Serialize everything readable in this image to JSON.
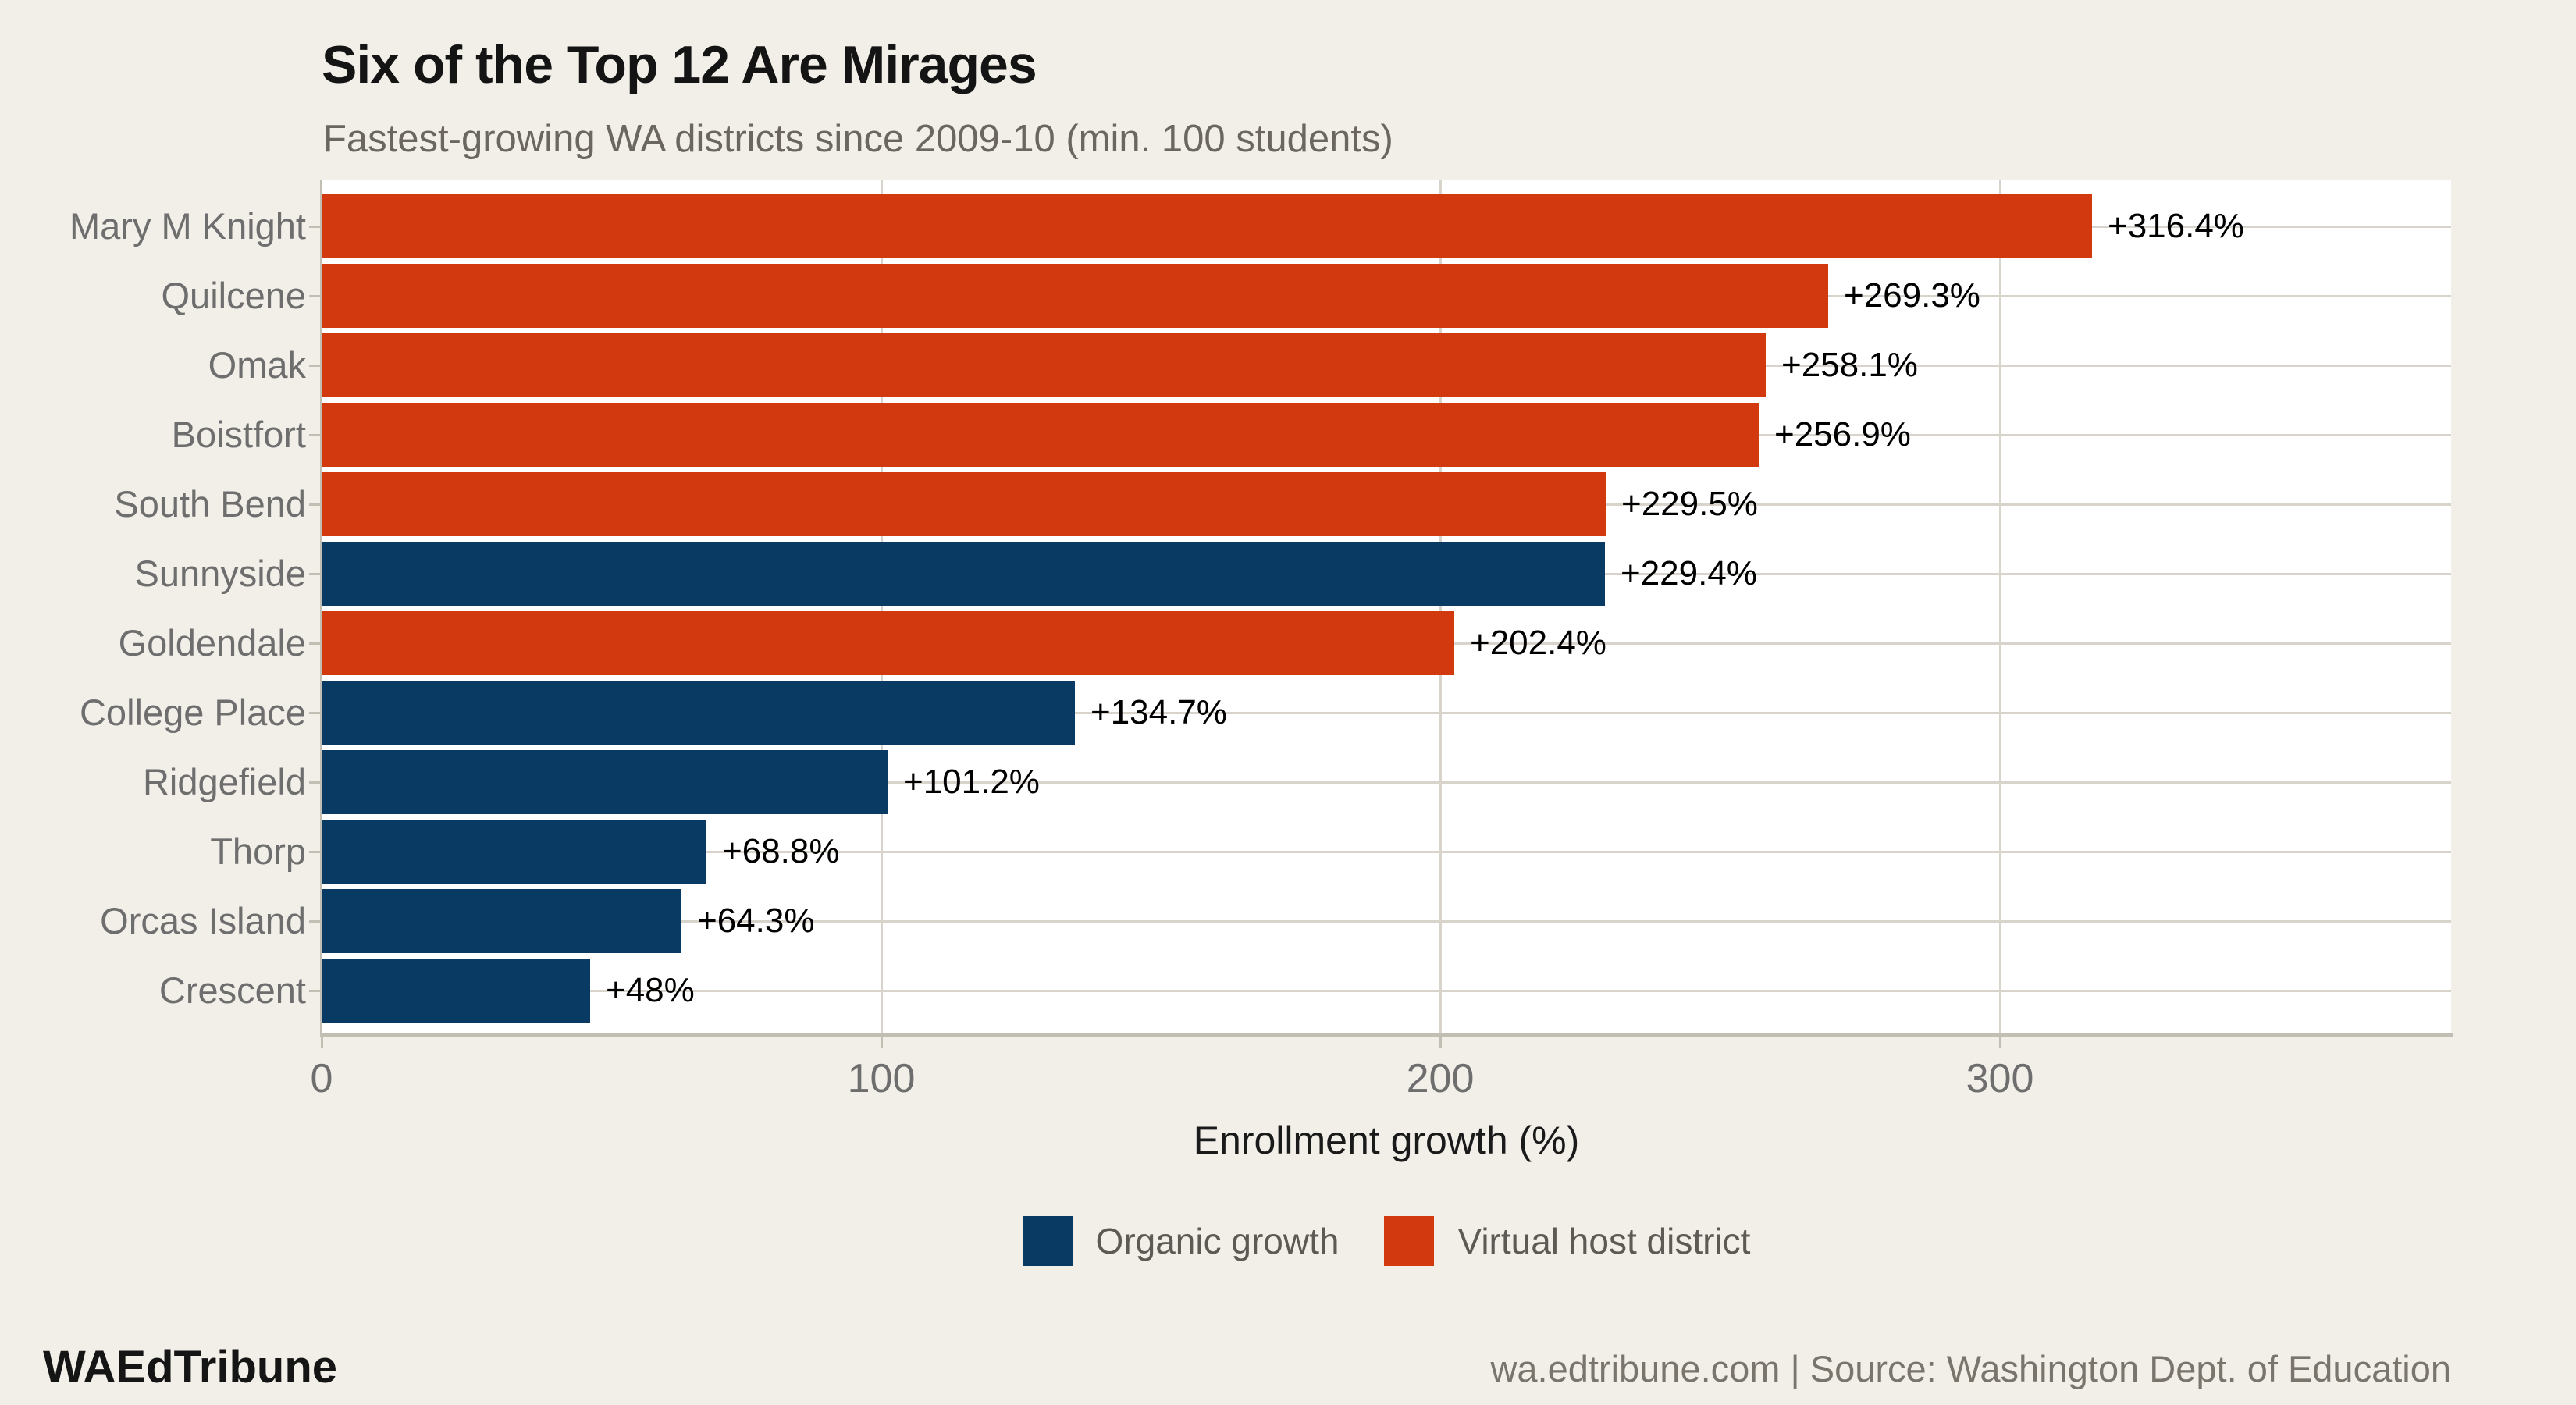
{
  "chart_data": {
    "type": "bar",
    "orientation": "horizontal",
    "title": "Six of the Top 12 Are Mirages",
    "subtitle": "Fastest-growing WA districts since 2009-10 (min. 100 students)",
    "xlabel": "Enrollment growth (%)",
    "xlim": [
      0,
      380
    ],
    "xticks": [
      0,
      100,
      200,
      300
    ],
    "xtick_labels": [
      "0",
      "100",
      "200",
      "300"
    ],
    "grid": "major vertical lines at 100/200/300 and one horizontal line per category row",
    "legend_position": "bottom-center",
    "categories": [
      "Mary M Knight",
      "Quilcene",
      "Omak",
      "Boistfort",
      "South Bend",
      "Sunnyside",
      "Goldendale",
      "College Place",
      "Ridgefield",
      "Thorp",
      "Orcas Island",
      "Crescent"
    ],
    "values": [
      316.4,
      269.3,
      258.1,
      256.9,
      229.5,
      229.4,
      202.4,
      134.7,
      101.2,
      68.8,
      64.3,
      48
    ],
    "value_labels": [
      "+316.4%",
      "+269.3%",
      "+258.1%",
      "+256.9%",
      "+229.5%",
      "+229.4%",
      "+202.4%",
      "+134.7%",
      "+101.2%",
      "+68.8%",
      "+64.3%",
      "+48%"
    ],
    "groups": [
      "virtual",
      "virtual",
      "virtual",
      "virtual",
      "virtual",
      "organic",
      "virtual",
      "organic",
      "organic",
      "organic",
      "organic",
      "organic"
    ],
    "legend": [
      {
        "key": "organic",
        "label": "Organic growth",
        "color": "#083a63"
      },
      {
        "key": "virtual",
        "label": "Virtual host district",
        "color": "#d2390f"
      }
    ]
  },
  "colors": {
    "organic": "#083a63",
    "virtual": "#d2390f",
    "background": "#f2efe9",
    "panel": "#ffffff",
    "gridline": "#d8d3cb",
    "axis_line": "#c3beb4",
    "category_text": "#6e6e6e",
    "subtitle_text": "#6b6760",
    "legend_text": "#5d5a55",
    "source_text": "#7a756c"
  },
  "footer": {
    "brand": "WAEdTribune",
    "source": "wa.edtribune.com | Source: Washington Dept. of Education"
  }
}
